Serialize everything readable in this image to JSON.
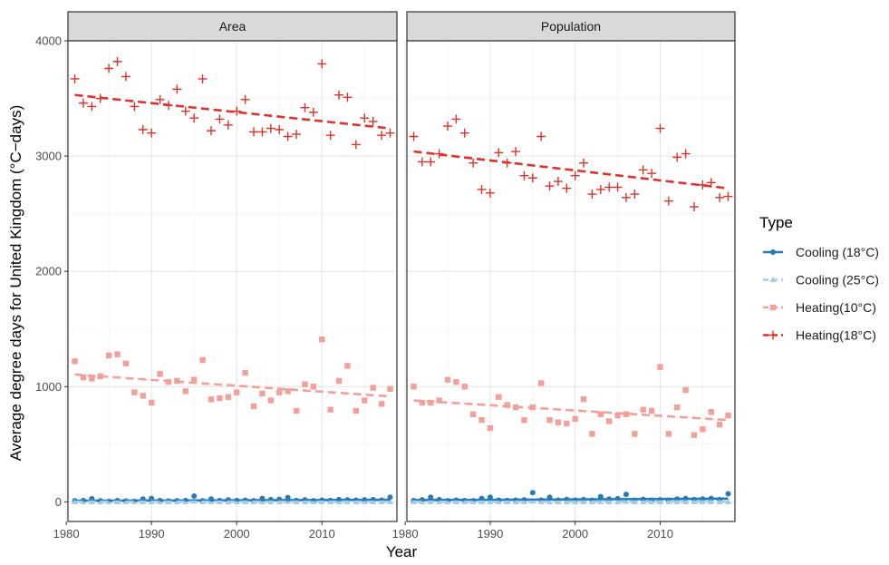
{
  "chart_data": {
    "type": "scatter",
    "xlabel": "Year",
    "ylabel": "Average degree days for United Kingdom (°C−days)",
    "xlim": [
      1980.2,
      2018.8
    ],
    "ylim": [
      -170,
      4000
    ],
    "x_ticks": [
      1980,
      1990,
      2000,
      2010
    ],
    "y_ticks": [
      0,
      1000,
      2000,
      3000,
      4000
    ],
    "y_tick_labels": [
      "0",
      "1000",
      "2000",
      "3000",
      "4000"
    ],
    "grid": true,
    "legend": {
      "title": "Type",
      "position": "right",
      "entries": [
        {
          "label": "Cooling (18°C)",
          "color": "#2479b8",
          "marker": "circle",
          "line": "solid"
        },
        {
          "label": "Cooling (25°C)",
          "color": "#a6cce4",
          "marker": "triangle",
          "line": "dashed"
        },
        {
          "label": "Heating(10°C)",
          "color": "#f4a09a",
          "marker": "square",
          "line": "dashed"
        },
        {
          "label": "Heating(18°C)",
          "color": "#e0322a",
          "marker": "plus",
          "line": "dashed"
        }
      ]
    },
    "years": [
      1981,
      1982,
      1983,
      1984,
      1985,
      1986,
      1987,
      1988,
      1989,
      1990,
      1991,
      1992,
      1993,
      1994,
      1995,
      1996,
      1997,
      1998,
      1999,
      2000,
      2001,
      2002,
      2003,
      2004,
      2005,
      2006,
      2007,
      2008,
      2009,
      2010,
      2011,
      2012,
      2013,
      2014,
      2015,
      2016,
      2017,
      2018
    ],
    "panels": [
      {
        "title": "Area",
        "series": [
          {
            "name": "Cooling (25°C)",
            "values": [
              0,
              0,
              0,
              0,
              0,
              0,
              0,
              0,
              0,
              0,
              0,
              0,
              0,
              0,
              5,
              0,
              0,
              0,
              0,
              0,
              0,
              0,
              0,
              0,
              0,
              3,
              0,
              0,
              0,
              0,
              0,
              0,
              0,
              0,
              0,
              0,
              0,
              0
            ],
            "trend": [
              2,
              2
            ]
          },
          {
            "name": "Cooling (18°C)",
            "values": [
              10,
              12,
              28,
              10,
              5,
              12,
              8,
              5,
              25,
              30,
              12,
              8,
              10,
              12,
              50,
              10,
              25,
              12,
              18,
              12,
              15,
              10,
              30,
              20,
              22,
              38,
              12,
              18,
              10,
              15,
              12,
              20,
              18,
              15,
              18,
              20,
              15,
              40
            ],
            "trend": [
              10,
              18
            ]
          },
          {
            "name": "Heating(10°C)",
            "values": [
              1220,
              1080,
              1070,
              1090,
              1270,
              1280,
              1200,
              950,
              920,
              860,
              1110,
              1040,
              1050,
              960,
              1060,
              1230,
              890,
              900,
              910,
              950,
              1120,
              830,
              940,
              880,
              950,
              960,
              790,
              1020,
              1000,
              1410,
              800,
              1050,
              1180,
              790,
              880,
              990,
              850,
              980
            ],
            "trend": [
              1105,
              915
            ]
          },
          {
            "name": "Heating(18°C)",
            "values": [
              3670,
              3460,
              3430,
              3500,
              3760,
              3820,
              3690,
              3430,
              3230,
              3200,
              3490,
              3440,
              3580,
              3390,
              3330,
              3670,
              3220,
              3320,
              3270,
              3390,
              3490,
              3210,
              3210,
              3240,
              3230,
              3170,
              3190,
              3420,
              3380,
              3800,
              3180,
              3530,
              3510,
              3100,
              3330,
              3300,
              3180,
              3200
            ],
            "trend": [
              3530,
              3240
            ]
          }
        ]
      },
      {
        "title": "Population",
        "series": [
          {
            "name": "Cooling (25°C)",
            "values": [
              0,
              0,
              0,
              0,
              0,
              0,
              0,
              0,
              0,
              0,
              0,
              0,
              0,
              0,
              5,
              0,
              0,
              0,
              0,
              0,
              0,
              0,
              0,
              0,
              0,
              3,
              0,
              0,
              0,
              0,
              0,
              0,
              0,
              0,
              0,
              0,
              0,
              0
            ],
            "trend": [
              2,
              2
            ]
          },
          {
            "name": "Cooling (18°C)",
            "values": [
              12,
              18,
              40,
              20,
              10,
              15,
              12,
              10,
              30,
              40,
              15,
              12,
              15,
              18,
              80,
              15,
              40,
              15,
              22,
              15,
              20,
              15,
              45,
              25,
              28,
              65,
              15,
              22,
              15,
              18,
              15,
              25,
              30,
              20,
              25,
              30,
              20,
              70
            ],
            "trend": [
              15,
              28
            ]
          },
          {
            "name": "Heating(10°C)",
            "values": [
              1000,
              860,
              860,
              880,
              1060,
              1040,
              1000,
              760,
              710,
              640,
              910,
              840,
              820,
              710,
              820,
              1030,
              710,
              690,
              680,
              720,
              890,
              590,
              760,
              700,
              750,
              760,
              590,
              800,
              790,
              1170,
              590,
              820,
              970,
              580,
              630,
              780,
              670,
              750
            ],
            "trend": [
              880,
              710
            ]
          },
          {
            "name": "Heating(18°C)",
            "values": [
              3170,
              2950,
              2950,
              3020,
              3260,
              3320,
              3200,
              2940,
              2710,
              2680,
              3030,
              2940,
              3040,
              2830,
              2810,
              3170,
              2740,
              2780,
              2720,
              2830,
              2940,
              2670,
              2710,
              2730,
              2730,
              2640,
              2670,
              2880,
              2850,
              3240,
              2610,
              2990,
              3020,
              2560,
              2750,
              2770,
              2640,
              2650
            ],
            "trend": [
              3040,
              2720
            ]
          }
        ]
      }
    ]
  }
}
